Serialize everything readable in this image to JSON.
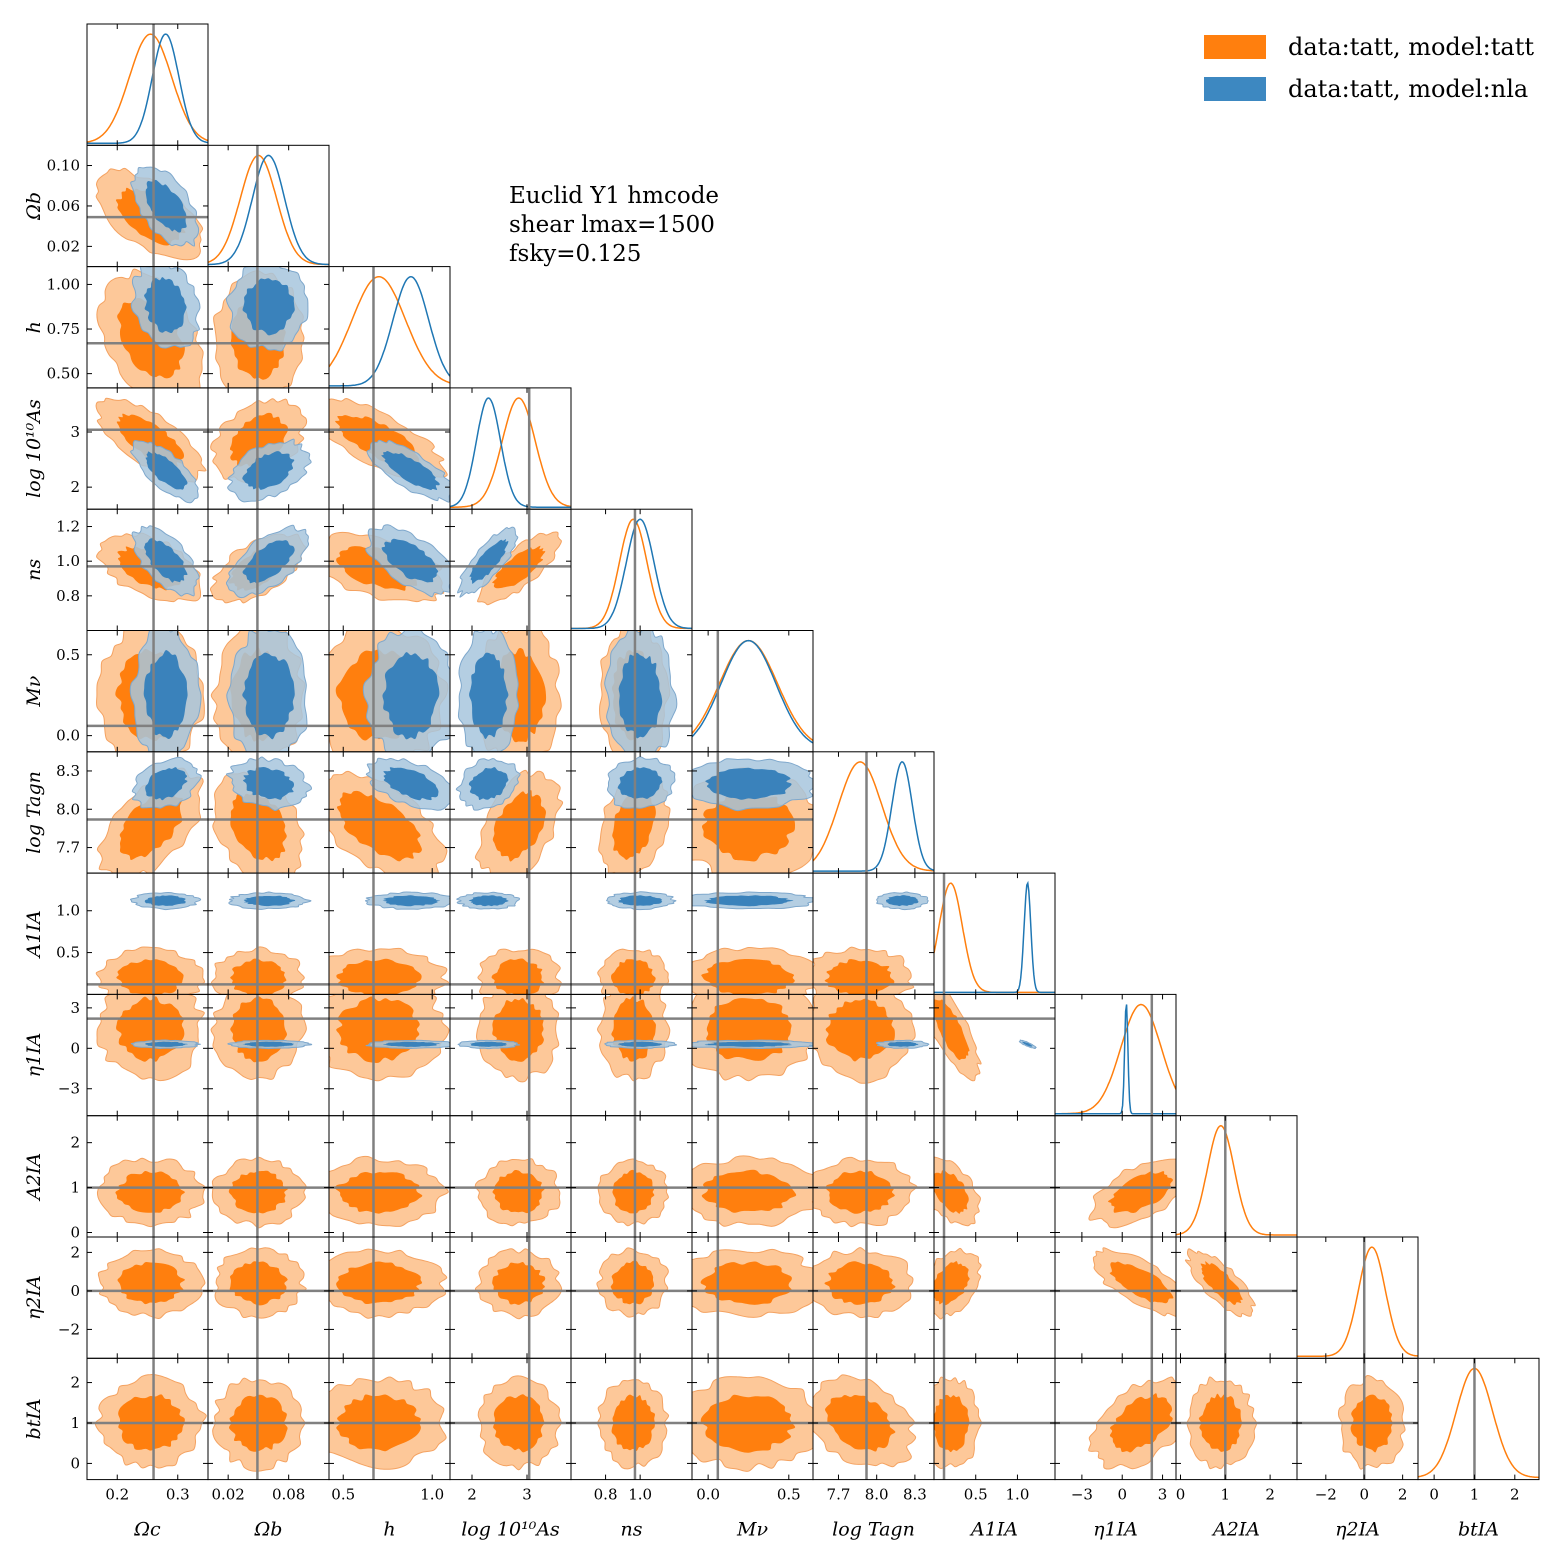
{
  "chart_data": {
    "type": "corner",
    "parameters": [
      {
        "key": "omega_c",
        "label": "Ωc",
        "range": [
          0.15,
          0.35
        ],
        "ticks": [
          0.2,
          0.3
        ],
        "tick_labels": [
          "0.2",
          "0.3"
        ],
        "truth": 0.26
      },
      {
        "key": "omega_b",
        "label": "Ωb",
        "range": [
          0.0,
          0.12
        ],
        "ticks": [
          0.02,
          0.06,
          0.1
        ],
        "tick_labels": [
          "0.02",
          "0.06",
          "0.10"
        ],
        "tick_labels_x": [
          "0.02",
          "0.08"
        ],
        "ticks_x": [
          0.02,
          0.08
        ],
        "truth": 0.049
      },
      {
        "key": "h",
        "label": "h",
        "range": [
          0.42,
          1.1
        ],
        "ticks": [
          0.5,
          0.75,
          1.0
        ],
        "tick_labels": [
          "0.50",
          "0.75",
          "1.00"
        ],
        "ticks_x": [
          0.5,
          1.0
        ],
        "tick_labels_x": [
          "0.5",
          "1.0"
        ],
        "truth": 0.67
      },
      {
        "key": "log10As",
        "label": "log 10¹⁰As",
        "range": [
          1.6,
          3.8
        ],
        "ticks": [
          2,
          3
        ],
        "tick_labels": [
          "2",
          "3"
        ],
        "truth": 3.04
      },
      {
        "key": "n_s",
        "label": "ns",
        "range": [
          0.6,
          1.3
        ],
        "ticks": [
          0.8,
          1.0,
          1.2
        ],
        "tick_labels": [
          "0.8",
          "1.0",
          "1.2"
        ],
        "ticks_x": [
          0.8,
          1.0
        ],
        "tick_labels_x": [
          "0.8",
          "1.0"
        ],
        "truth": 0.97
      },
      {
        "key": "M_nu",
        "label": "Mν",
        "range": [
          -0.1,
          0.65
        ],
        "ticks": [
          0.0,
          0.5
        ],
        "tick_labels": [
          "0.0",
          "0.5"
        ],
        "truth": 0.06
      },
      {
        "key": "logTagn",
        "label": "log Tagn",
        "range": [
          7.5,
          8.45
        ],
        "ticks": [
          7.7,
          8.0,
          8.3
        ],
        "tick_labels": [
          "7.7",
          "8.0",
          "8.3"
        ],
        "truth": 7.92
      },
      {
        "key": "A1_IA",
        "label": "A1IA",
        "range": [
          0.0,
          1.45
        ],
        "ticks": [
          0.5,
          1.0
        ],
        "tick_labels": [
          "0.5",
          "1.0"
        ],
        "truth": 0.12
      },
      {
        "key": "eta1_IA",
        "label": "η1IA",
        "range": [
          -5.0,
          4.0
        ],
        "ticks": [
          -3,
          0,
          3
        ],
        "tick_labels": [
          "−3",
          "0",
          "3"
        ],
        "truth": 2.2
      },
      {
        "key": "A2_IA",
        "label": "A2IA",
        "range": [
          -0.1,
          2.6
        ],
        "ticks": [
          0,
          1,
          2
        ],
        "tick_labels": [
          "0",
          "1",
          "2"
        ],
        "truth": 1.0
      },
      {
        "key": "eta2_IA",
        "label": "η2IA",
        "range": [
          -3.5,
          2.8
        ],
        "ticks": [
          -2,
          0,
          2
        ],
        "tick_labels": [
          "−2",
          "0",
          "2"
        ],
        "truth": 0.0
      },
      {
        "key": "bt_IA",
        "label": "btIA",
        "range": [
          -0.4,
          2.6
        ],
        "ticks": [
          0,
          1,
          2
        ],
        "tick_labels": [
          "0",
          "1",
          "2"
        ],
        "truth": 1.0
      }
    ],
    "series": [
      {
        "name": "data:tatt, model:tatt",
        "color": "#ff7f0e",
        "light": "#fdc899",
        "dark": "#ff7f0e",
        "mean": [
          0.255,
          0.05,
          0.7,
          2.85,
          0.96,
          0.25,
          7.87,
          0.2,
          1.4,
          0.9,
          0.4,
          1.0
        ],
        "sd": [
          0.035,
          0.018,
          0.15,
          0.3,
          0.08,
          0.18,
          0.17,
          0.14,
          1.5,
          0.3,
          0.7,
          0.45
        ]
      },
      {
        "name": "data:tatt, model:nla",
        "color": "#1f77b4",
        "light": "#a7c6dd",
        "dark": "#3a82bb",
        "mean": [
          0.28,
          0.06,
          0.88,
          2.3,
          1.0,
          0.25,
          8.2,
          1.12,
          0.3,
          null,
          null,
          null
        ],
        "sd": [
          0.022,
          0.016,
          0.1,
          0.22,
          0.08,
          0.17,
          0.08,
          0.04,
          0.12,
          null,
          null,
          null
        ]
      }
    ],
    "legend_position": "top-right",
    "grid": false
  },
  "annotation": {
    "line1": "Euclid Y1 hmcode",
    "line2": "shear lmax=1500",
    "line3": "fsky=0.125"
  }
}
